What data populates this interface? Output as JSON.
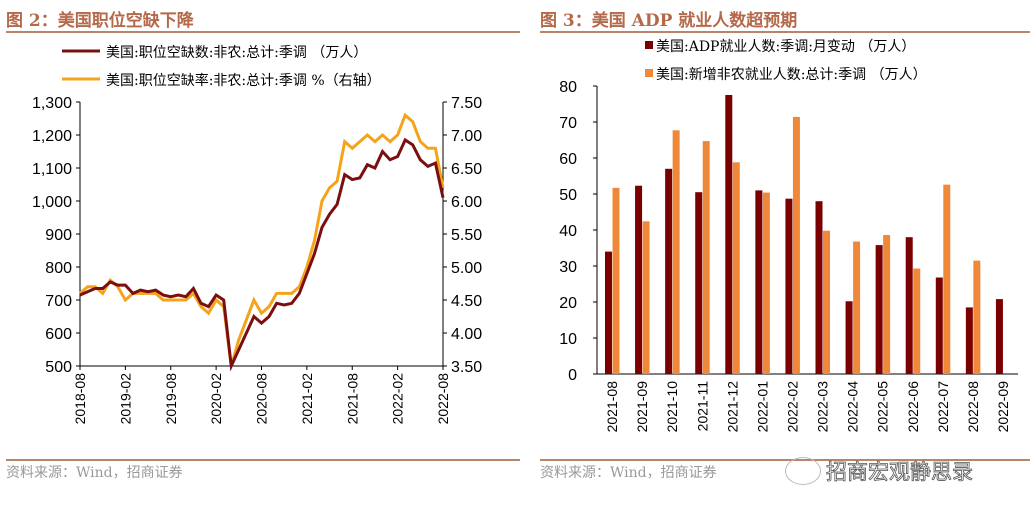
{
  "left": {
    "title": "图 2：美国职位空缺下降",
    "source": "资料来源：Wind，招商证券"
  },
  "right": {
    "title": "图 3：美国 ADP 就业人数超预期",
    "source": "资料来源：Wind，招商证券"
  },
  "watermark": "招商宏观静思录",
  "chart_data": [
    {
      "type": "line",
      "series": [
        {
          "name": "美国:职位空缺数:非农:总计:季调 （万人）",
          "color": "#7b0f0f",
          "axis": "left",
          "values": [
            715,
            725,
            735,
            735,
            755,
            745,
            745,
            720,
            730,
            725,
            730,
            715,
            710,
            715,
            710,
            735,
            690,
            680,
            715,
            700,
            500,
            550,
            600,
            650,
            630,
            650,
            690,
            685,
            690,
            720,
            780,
            840,
            920,
            960,
            990,
            1080,
            1065,
            1070,
            1110,
            1100,
            1150,
            1125,
            1135,
            1185,
            1170,
            1125,
            1105,
            1115,
            1010
          ]
        },
        {
          "name": "美国:职位空缺率:非农:总计:季调 %（右轴）",
          "color": "#f5a31a",
          "axis": "right",
          "values": [
            4.6,
            4.7,
            4.7,
            4.6,
            4.8,
            4.7,
            4.5,
            4.6,
            4.6,
            4.6,
            4.6,
            4.5,
            4.5,
            4.5,
            4.5,
            4.6,
            4.4,
            4.3,
            4.5,
            4.4,
            3.5,
            3.9,
            4.2,
            4.5,
            4.3,
            4.4,
            4.6,
            4.6,
            4.6,
            4.7,
            5.0,
            5.4,
            6.0,
            6.2,
            6.3,
            6.9,
            6.8,
            6.9,
            7.0,
            6.9,
            7.0,
            6.9,
            7.0,
            7.3,
            7.2,
            6.9,
            6.8,
            6.8,
            6.2
          ]
        }
      ],
      "x_start": "2018-08",
      "x_end": "2022-08",
      "xticks": [
        "2018-08",
        "2019-02",
        "2019-08",
        "2020-02",
        "2020-08",
        "2021-02",
        "2021-08",
        "2022-02",
        "2022-08"
      ],
      "ylim": [
        500,
        1300
      ],
      "yticks": [
        "500",
        "600",
        "700",
        "800",
        "900",
        "1,000",
        "1,100",
        "1,200",
        "1,300"
      ],
      "y2lim": [
        3.5,
        7.5
      ],
      "y2ticks": [
        "3.50",
        "4.00",
        "4.50",
        "5.00",
        "5.50",
        "6.00",
        "6.50",
        "7.00",
        "7.50"
      ],
      "legend": "top",
      "grid": false
    },
    {
      "type": "bar",
      "categories": [
        "2021-08",
        "2021-09",
        "2021-10",
        "2021-11",
        "2021-12",
        "2022-01",
        "2022-02",
        "2022-03",
        "2022-04",
        "2022-05",
        "2022-06",
        "2022-07",
        "2022-08",
        "2022-09"
      ],
      "series": [
        {
          "name": "美国:ADP就业人数:季调:月变动 （万人）",
          "color": "#7b0000",
          "values": [
            34,
            52.3,
            57,
            50.5,
            77.5,
            51,
            48.7,
            48,
            20.2,
            35.8,
            38,
            26.8,
            18.5,
            20.8
          ]
        },
        {
          "name": "美国:新增非农就业人数:总计:季调 （万人）",
          "color": "#f0883a",
          "values": [
            51.7,
            42.4,
            67.7,
            64.7,
            58.8,
            50.4,
            71.4,
            39.8,
            36.8,
            38.6,
            29.3,
            52.6,
            31.5,
            null
          ]
        }
      ],
      "ylim": [
        0,
        80
      ],
      "yticks": [
        "0",
        "10",
        "20",
        "30",
        "40",
        "50",
        "60",
        "70",
        "80"
      ],
      "legend": "top",
      "grid": false
    }
  ]
}
